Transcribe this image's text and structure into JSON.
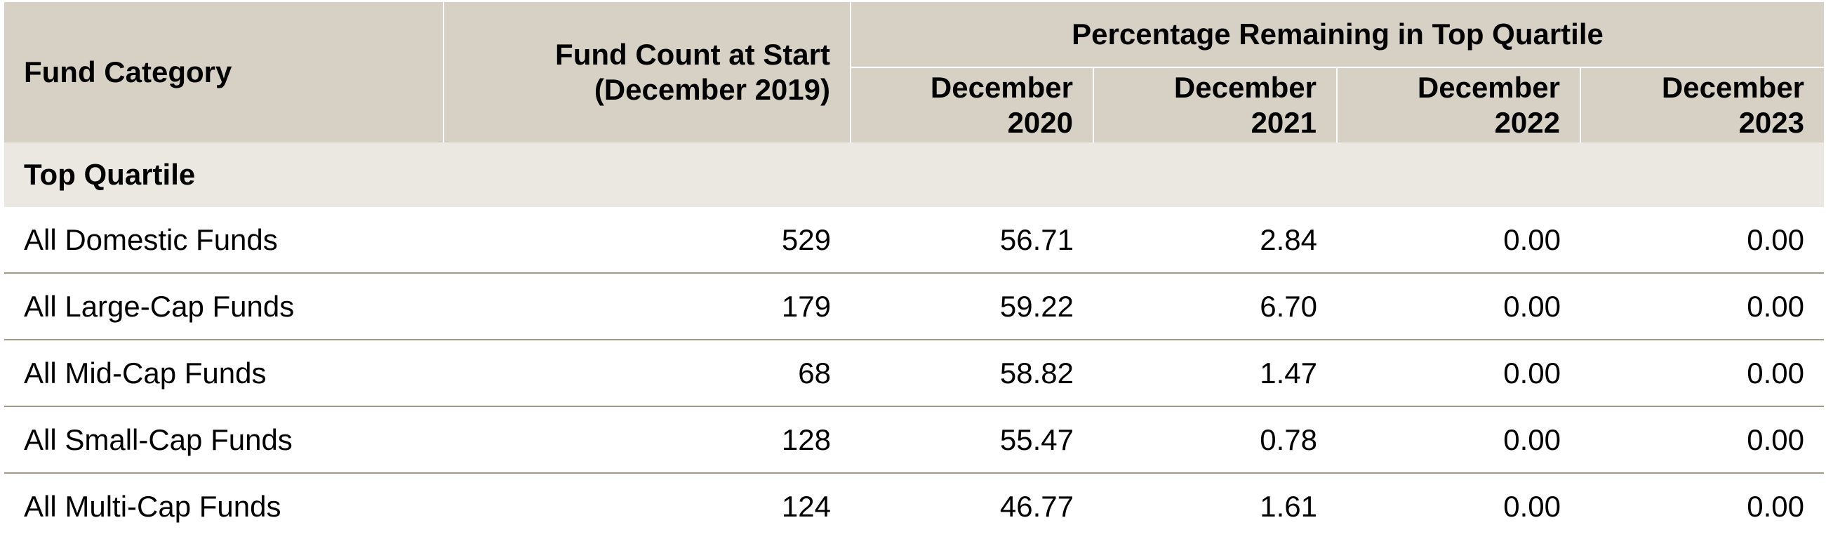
{
  "table": {
    "headers": {
      "category": "Fund Category",
      "count_line1": "Fund Count at Start",
      "count_line2": "(December 2019)",
      "group": "Percentage Remaining in Top Quartile",
      "years": [
        {
          "line1": "December",
          "line2": "2020"
        },
        {
          "line1": "December",
          "line2": "2021"
        },
        {
          "line1": "December",
          "line2": "2022"
        },
        {
          "line1": "December",
          "line2": "2023"
        }
      ]
    },
    "section_label": "Top Quartile",
    "rows": [
      {
        "name": "All Domestic Funds",
        "count": "529",
        "values": [
          "56.71",
          "2.84",
          "0.00",
          "0.00"
        ]
      },
      {
        "name": "All Large-Cap Funds",
        "count": "179",
        "values": [
          "59.22",
          "6.70",
          "0.00",
          "0.00"
        ]
      },
      {
        "name": "All Mid-Cap Funds",
        "count": "68",
        "values": [
          "58.82",
          "1.47",
          "0.00",
          "0.00"
        ]
      },
      {
        "name": "All Small-Cap Funds",
        "count": "128",
        "values": [
          "55.47",
          "0.78",
          "0.00",
          "0.00"
        ]
      },
      {
        "name": "All Multi-Cap Funds",
        "count": "124",
        "values": [
          "46.77",
          "1.61",
          "0.00",
          "0.00"
        ]
      }
    ]
  },
  "colors": {
    "header_bg": "#d6d1c4",
    "section_bg": "#ebe8e1",
    "row_rule": "#a39a83"
  }
}
